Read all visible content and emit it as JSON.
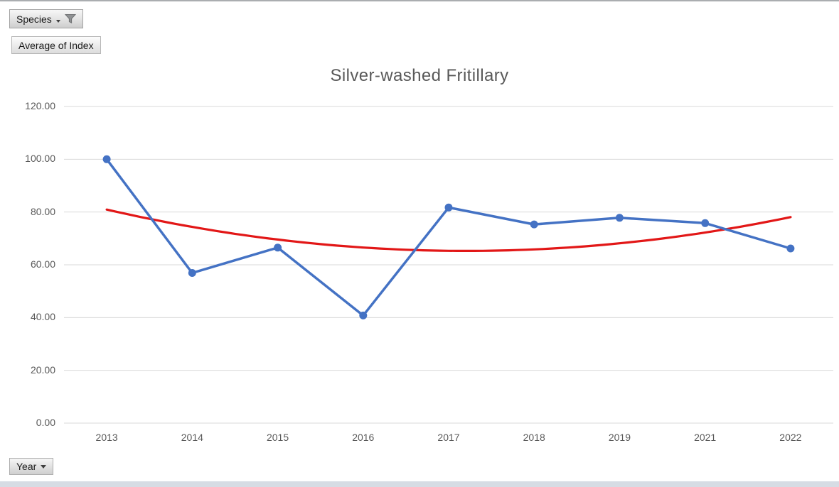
{
  "page": {
    "top_edge_color": "#aaadb0",
    "bottom_edge_color": "#d6dce4",
    "background_color": "#ffffff"
  },
  "field_buttons": {
    "species": {
      "label": "Species",
      "icons": [
        "dropdown-caret",
        "filter-funnel"
      ]
    },
    "value": {
      "label": "Average of Index"
    },
    "axis": {
      "label": "Year",
      "icons": [
        "dropdown-caret"
      ]
    }
  },
  "chart_data": {
    "type": "line",
    "title": "Silver-washed Fritillary",
    "title_color": "#595959",
    "categories": [
      "2013",
      "2014",
      "2015",
      "2016",
      "2017",
      "2018",
      "2019",
      "2021",
      "2022"
    ],
    "series": [
      {
        "name": "Average of Index",
        "color": "#4472c4",
        "marker": "circle",
        "values": [
          100.0,
          56.9,
          66.5,
          40.8,
          81.7,
          75.3,
          77.8,
          75.8,
          66.2
        ]
      }
    ],
    "trendline": {
      "applies_to": "Average of Index",
      "type": "polynomial",
      "order": 2,
      "color": "#e21717"
    },
    "ylim": [
      0,
      120
    ],
    "yticks": [
      {
        "value": 120,
        "label": "120.00"
      },
      {
        "value": 100,
        "label": "100.00"
      },
      {
        "value": 80,
        "label": "80.00"
      },
      {
        "value": 60,
        "label": "60.00"
      },
      {
        "value": 40,
        "label": "40.00"
      },
      {
        "value": 20,
        "label": "20.00"
      },
      {
        "value": 0,
        "label": "0.00"
      }
    ],
    "grid": true,
    "gridline_color": "#d9d9d9",
    "axis_label_color": "#595959",
    "legend": "none"
  }
}
